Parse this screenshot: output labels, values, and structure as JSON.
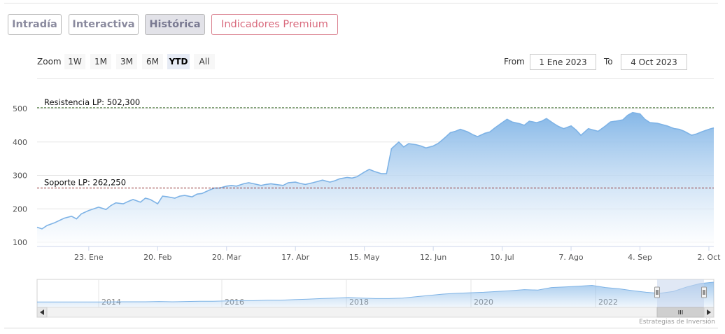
{
  "tabs": [
    {
      "label": "Intradía",
      "state": "normal"
    },
    {
      "label": "Interactiva",
      "state": "normal"
    },
    {
      "label": "Histórica",
      "state": "active"
    },
    {
      "label": "Indicadores Premium",
      "state": "premium"
    }
  ],
  "range_selector": {
    "zoom_label": "Zoom",
    "buttons": [
      "1W",
      "1M",
      "3M",
      "6M",
      "YTD",
      "All"
    ],
    "selected": "YTD",
    "from_label": "From",
    "from_value": "1 Ene 2023",
    "to_label": "To",
    "to_value": "4 Oct 2023"
  },
  "credit": "Estrategias de Inversión",
  "colors": {
    "line": "#7eb3e6",
    "area_top": "#7eb3e6",
    "area_bottom": "#ffffff",
    "resistance": "#3a6b2a",
    "support": "#8b2a2a",
    "tab_premium": "#d96a7d"
  },
  "chart_data": {
    "type": "area",
    "title": "",
    "xlabel": "",
    "ylabel": "",
    "ylim": [
      100,
      500
    ],
    "y_ticks": [
      100,
      200,
      300,
      400,
      500
    ],
    "x_range": [
      "2023-01-02",
      "2023-10-04"
    ],
    "x_ticks": [
      {
        "date": "2023-01-23",
        "label": "23. Ene"
      },
      {
        "date": "2023-02-20",
        "label": "20. Feb"
      },
      {
        "date": "2023-03-20",
        "label": "20. Mar"
      },
      {
        "date": "2023-04-17",
        "label": "17. Abr"
      },
      {
        "date": "2023-05-15",
        "label": "15. May"
      },
      {
        "date": "2023-06-12",
        "label": "12. Jun"
      },
      {
        "date": "2023-07-10",
        "label": "10. Jul"
      },
      {
        "date": "2023-08-07",
        "label": "7. Ago"
      },
      {
        "date": "2023-09-04",
        "label": "4. Sep"
      },
      {
        "date": "2023-10-02",
        "label": "2. Oct"
      }
    ],
    "grid": true,
    "legend": "none",
    "plot_lines": [
      {
        "label": "Resistencia LP: 502,300",
        "value": 502.3,
        "style": "dashed",
        "color_key": "resistance"
      },
      {
        "label": "Soporte LP: 262,250",
        "value": 262.25,
        "style": "dashed",
        "color_key": "support"
      }
    ],
    "series": [
      {
        "x": [
          "2023-01-02",
          "2023-01-04",
          "2023-01-06",
          "2023-01-09",
          "2023-01-11",
          "2023-01-13",
          "2023-01-16",
          "2023-01-18",
          "2023-01-20",
          "2023-01-23",
          "2023-01-25",
          "2023-01-27",
          "2023-01-30",
          "2023-02-01",
          "2023-02-03",
          "2023-02-06",
          "2023-02-08",
          "2023-02-10",
          "2023-02-13",
          "2023-02-15",
          "2023-02-17",
          "2023-02-20",
          "2023-02-22",
          "2023-02-24",
          "2023-02-27",
          "2023-03-01",
          "2023-03-03",
          "2023-03-06",
          "2023-03-08",
          "2023-03-10",
          "2023-03-13",
          "2023-03-15",
          "2023-03-17",
          "2023-03-20",
          "2023-03-22",
          "2023-03-24",
          "2023-03-27",
          "2023-03-29",
          "2023-03-31",
          "2023-04-03",
          "2023-04-05",
          "2023-04-07",
          "2023-04-10",
          "2023-04-12",
          "2023-04-14",
          "2023-04-17",
          "2023-04-19",
          "2023-04-21",
          "2023-04-24",
          "2023-04-26",
          "2023-04-28",
          "2023-05-01",
          "2023-05-03",
          "2023-05-05",
          "2023-05-08",
          "2023-05-10",
          "2023-05-12",
          "2023-05-15",
          "2023-05-17",
          "2023-05-19",
          "2023-05-22",
          "2023-05-24",
          "2023-05-26",
          "2023-05-29",
          "2023-05-31",
          "2023-06-02",
          "2023-06-05",
          "2023-06-07",
          "2023-06-09",
          "2023-06-12",
          "2023-06-14",
          "2023-06-16",
          "2023-06-19",
          "2023-06-21",
          "2023-06-23",
          "2023-06-26",
          "2023-06-28",
          "2023-06-30",
          "2023-07-03",
          "2023-07-05",
          "2023-07-07",
          "2023-07-10",
          "2023-07-12",
          "2023-07-14",
          "2023-07-17",
          "2023-07-19",
          "2023-07-21",
          "2023-07-24",
          "2023-07-26",
          "2023-07-28",
          "2023-07-31",
          "2023-08-02",
          "2023-08-04",
          "2023-08-07",
          "2023-08-09",
          "2023-08-11",
          "2023-08-14",
          "2023-08-16",
          "2023-08-18",
          "2023-08-21",
          "2023-08-23",
          "2023-08-25",
          "2023-08-28",
          "2023-08-30",
          "2023-09-01",
          "2023-09-04",
          "2023-09-06",
          "2023-09-08",
          "2023-09-11",
          "2023-09-13",
          "2023-09-15",
          "2023-09-18",
          "2023-09-20",
          "2023-09-22",
          "2023-09-25",
          "2023-09-27",
          "2023-09-29",
          "2023-10-02",
          "2023-10-04"
        ],
        "values": [
          145,
          140,
          150,
          158,
          165,
          172,
          178,
          170,
          185,
          195,
          200,
          205,
          198,
          210,
          218,
          215,
          222,
          228,
          220,
          232,
          228,
          215,
          238,
          236,
          232,
          238,
          240,
          236,
          244,
          246,
          256,
          262,
          262,
          268,
          270,
          268,
          275,
          278,
          275,
          270,
          273,
          275,
          272,
          270,
          278,
          280,
          276,
          273,
          278,
          282,
          286,
          280,
          284,
          290,
          294,
          292,
          296,
          310,
          318,
          312,
          305,
          305,
          380,
          400,
          385,
          395,
          392,
          388,
          382,
          388,
          396,
          408,
          428,
          432,
          438,
          430,
          422,
          416,
          426,
          430,
          442,
          458,
          468,
          460,
          455,
          450,
          462,
          458,
          462,
          470,
          455,
          446,
          440,
          448,
          436,
          420,
          440,
          436,
          432,
          448,
          460,
          462,
          466,
          480,
          488,
          484,
          468,
          458,
          456,
          452,
          448,
          440,
          438,
          432,
          420,
          424,
          430,
          438,
          442
        ]
      }
    ],
    "navigator": {
      "year_labels": [
        "2014",
        "2016",
        "2018",
        "2020",
        "2022"
      ],
      "values": [
        15,
        15,
        15,
        15,
        15,
        15,
        16,
        16,
        16,
        17,
        16,
        17,
        18,
        18,
        19,
        20,
        20,
        22,
        22,
        24,
        26,
        28,
        30,
        32,
        30,
        28,
        28,
        30,
        35,
        40,
        45,
        48,
        50,
        52,
        55,
        58,
        62,
        60,
        70,
        72,
        75,
        78,
        70,
        65,
        58,
        52,
        48,
        55,
        72,
        85,
        90
      ]
    }
  }
}
